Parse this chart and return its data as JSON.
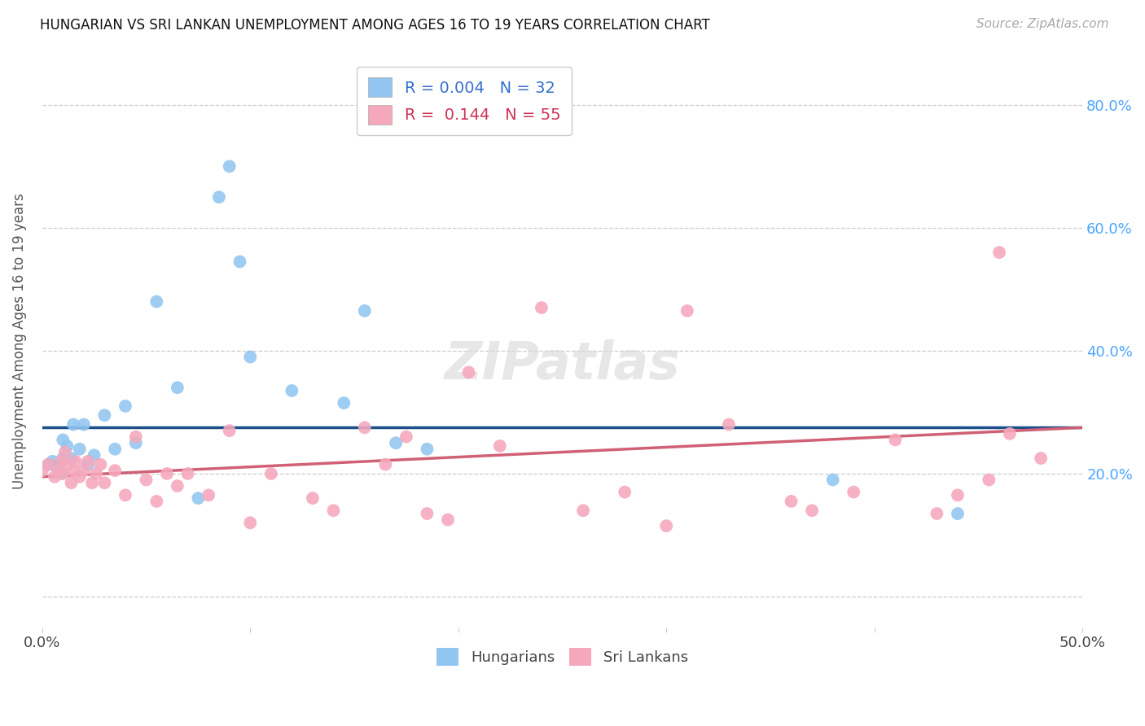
{
  "title": "HUNGARIAN VS SRI LANKAN UNEMPLOYMENT AMONG AGES 16 TO 19 YEARS CORRELATION CHART",
  "source": "Source: ZipAtlas.com",
  "ylabel": "Unemployment Among Ages 16 to 19 years",
  "xlim": [
    0.0,
    0.5
  ],
  "ylim": [
    -0.05,
    0.88
  ],
  "background_color": "#ffffff",
  "hungarian_color": "#92c5f0",
  "srilanka_color": "#f5a8bc",
  "legend_R_hungarian": "0.004",
  "legend_N_hungarian": "32",
  "legend_R_srilanka": "0.144",
  "legend_N_srilanka": "55",
  "trendline_hungarian_color": "#1a4f8a",
  "trendline_srilanka_color": "#d06075",
  "hun_trend_start_y": 0.275,
  "hun_trend_end_y": 0.275,
  "sri_trend_start_y": 0.195,
  "sri_trend_end_y": 0.275,
  "hungarian_x": [
    0.003,
    0.005,
    0.007,
    0.008,
    0.009,
    0.01,
    0.01,
    0.012,
    0.014,
    0.015,
    0.018,
    0.02,
    0.022,
    0.025,
    0.03,
    0.035,
    0.04,
    0.045,
    0.055,
    0.065,
    0.075,
    0.085,
    0.09,
    0.095,
    0.1,
    0.12,
    0.145,
    0.155,
    0.17,
    0.185,
    0.38,
    0.44
  ],
  "hungarian_y": [
    0.215,
    0.22,
    0.21,
    0.215,
    0.2,
    0.225,
    0.255,
    0.245,
    0.225,
    0.28,
    0.24,
    0.28,
    0.215,
    0.23,
    0.295,
    0.24,
    0.31,
    0.25,
    0.48,
    0.34,
    0.16,
    0.65,
    0.7,
    0.545,
    0.39,
    0.335,
    0.315,
    0.465,
    0.25,
    0.24,
    0.19,
    0.135
  ],
  "srilanka_x": [
    0.0,
    0.003,
    0.006,
    0.008,
    0.009,
    0.01,
    0.011,
    0.012,
    0.014,
    0.015,
    0.016,
    0.018,
    0.02,
    0.022,
    0.024,
    0.026,
    0.028,
    0.03,
    0.035,
    0.04,
    0.045,
    0.05,
    0.055,
    0.06,
    0.065,
    0.07,
    0.08,
    0.09,
    0.1,
    0.11,
    0.13,
    0.14,
    0.155,
    0.165,
    0.175,
    0.185,
    0.195,
    0.205,
    0.22,
    0.24,
    0.26,
    0.28,
    0.3,
    0.31,
    0.33,
    0.36,
    0.37,
    0.39,
    0.41,
    0.43,
    0.44,
    0.455,
    0.46,
    0.465,
    0.48
  ],
  "srilanka_y": [
    0.205,
    0.215,
    0.195,
    0.205,
    0.22,
    0.2,
    0.235,
    0.215,
    0.185,
    0.205,
    0.22,
    0.195,
    0.205,
    0.22,
    0.185,
    0.2,
    0.215,
    0.185,
    0.205,
    0.165,
    0.26,
    0.19,
    0.155,
    0.2,
    0.18,
    0.2,
    0.165,
    0.27,
    0.12,
    0.2,
    0.16,
    0.14,
    0.275,
    0.215,
    0.26,
    0.135,
    0.125,
    0.365,
    0.245,
    0.47,
    0.14,
    0.17,
    0.115,
    0.465,
    0.28,
    0.155,
    0.14,
    0.17,
    0.255,
    0.135,
    0.165,
    0.19,
    0.56,
    0.265,
    0.225
  ]
}
